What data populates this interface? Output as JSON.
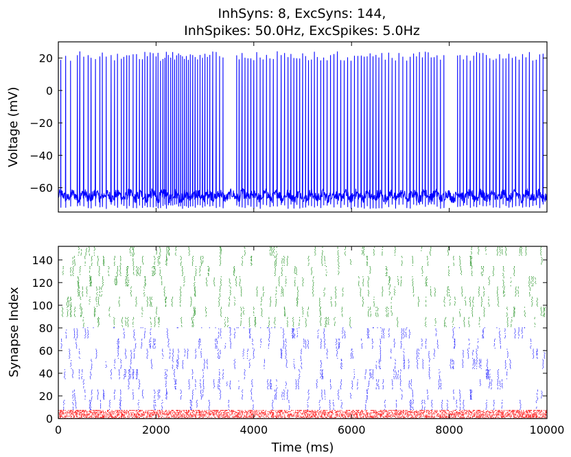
{
  "chart_data": [
    {
      "type": "line",
      "title": [
        "InhSyns: 8, ExcSyns: 144,",
        "InhSpikes: 50.0Hz, ExcSpikes: 5.0Hz"
      ],
      "xlabel": "",
      "ylabel": "Voltage (mV)",
      "xlim": [
        0,
        10000
      ],
      "ylim": [
        -75,
        30
      ],
      "yticks": [
        20,
        0,
        -20,
        -40,
        -60
      ],
      "ytick_labels": [
        "20",
        "0",
        "−20",
        "−40",
        "−60"
      ],
      "xticks": [
        2000,
        4000,
        6000,
        8000
      ],
      "x_tick_labels_shown": false,
      "grid": false,
      "baseline_mV": -65,
      "spike_peak_mV": 24,
      "series": [
        {
          "color": "#0000ff",
          "spike_times_ms": [
            50,
            150,
            250,
            390,
            440,
            520,
            610,
            670,
            760,
            850,
            900,
            980,
            1080,
            1150,
            1210,
            1290,
            1340,
            1400,
            1450,
            1530,
            1600,
            1660,
            1720,
            1770,
            1820,
            1880,
            1940,
            2000,
            2040,
            2090,
            2140,
            2180,
            2210,
            2250,
            2300,
            2340,
            2380,
            2420,
            2460,
            2500,
            2540,
            2580,
            2620,
            2660,
            2700,
            2750,
            2800,
            2850,
            2900,
            2950,
            3000,
            3050,
            3100,
            3160,
            3230,
            3300,
            3370,
            3650,
            3700,
            3760,
            3820,
            3880,
            3940,
            4000,
            4060,
            4130,
            4190,
            4260,
            4330,
            4400,
            4480,
            4560,
            4630,
            4700,
            4760,
            4820,
            4880,
            4940,
            5000,
            5060,
            5120,
            5180,
            5240,
            5300,
            5370,
            5430,
            5500,
            5570,
            5640,
            5710,
            5780,
            5850,
            5920,
            5990,
            6060,
            6130,
            6200,
            6260,
            6320,
            6380,
            6440,
            6500,
            6560,
            6620,
            6690,
            6760,
            6830,
            6900,
            6970,
            7050,
            7130,
            7200,
            7270,
            7330,
            7390,
            7450,
            7510,
            7570,
            7630,
            7690,
            7750,
            7820,
            7890,
            8170,
            8220,
            8290,
            8360,
            8430,
            8500,
            8560,
            8620,
            8690,
            8760,
            8830,
            8900,
            8960,
            9030,
            9100,
            9160,
            9220,
            9290,
            9360,
            9430,
            9500,
            9570,
            9640,
            9710,
            9780,
            9850,
            9920
          ]
        }
      ]
    },
    {
      "type": "scatter",
      "xlabel": "Time (ms)",
      "ylabel": "Synapse Index",
      "xlim": [
        0,
        10000
      ],
      "ylim": [
        0,
        152
      ],
      "xticks": [
        0,
        2000,
        4000,
        6000,
        8000,
        10000
      ],
      "xtick_labels": [
        "0",
        "2000",
        "4000",
        "6000",
        "8000",
        "10000"
      ],
      "yticks": [
        0,
        20,
        40,
        60,
        80,
        100,
        120,
        140
      ],
      "ytick_labels": [
        "0",
        "20",
        "40",
        "60",
        "80",
        "100",
        "120",
        "140"
      ],
      "grid": false,
      "series": [
        {
          "color": "#ff0000",
          "index_range": [
            0,
            7
          ],
          "rate_hz": 50.0
        },
        {
          "color": "#0000ff",
          "index_range": [
            8,
            80
          ],
          "rate_hz": 5.0
        },
        {
          "color": "#008000",
          "index_range": [
            81,
            151
          ],
          "rate_hz": 5.0
        }
      ]
    }
  ]
}
